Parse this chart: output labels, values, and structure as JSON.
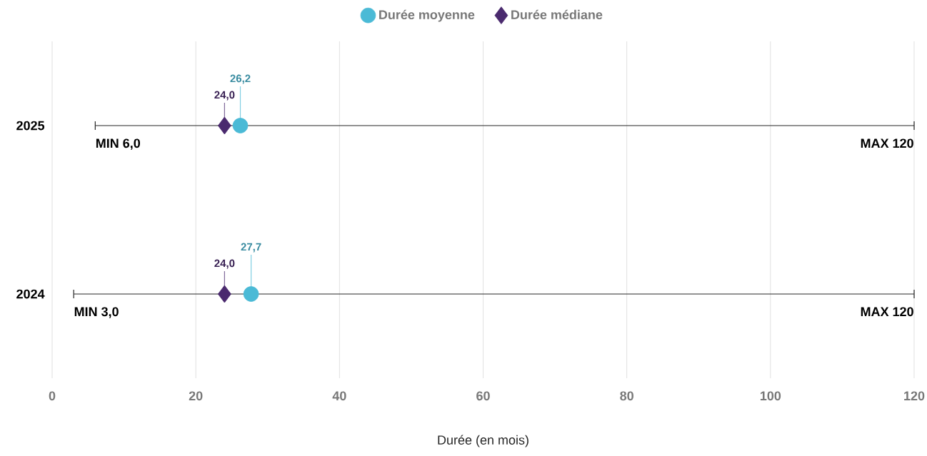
{
  "chart_data": {
    "type": "scatter",
    "orientation": "horizontal",
    "categories": [
      "2025",
      "2024"
    ],
    "xlabel": "Durée (en mois)",
    "xlim": [
      0,
      120
    ],
    "xticks": [
      0,
      20,
      40,
      60,
      80,
      100,
      120
    ],
    "grid": "x",
    "legend": "top",
    "series": [
      {
        "name": "Durée moyenne",
        "color": "#4bbad6",
        "marker": "circle",
        "values": [
          26.2,
          27.7
        ],
        "value_labels": [
          "26,2",
          "27,7"
        ],
        "errors": [
          [
            6.0,
            120
          ],
          [
            3.0,
            120
          ]
        ]
      },
      {
        "name": "Durée médiane",
        "color": "#4a2a6e",
        "marker": "diamond",
        "values": [
          24.0,
          24.0
        ],
        "value_labels": [
          "24,0",
          "24,0"
        ]
      }
    ],
    "annotations": [
      "MIN 6,0",
      "MAX 120",
      "MIN 3,0",
      "MAX 120"
    ]
  }
}
